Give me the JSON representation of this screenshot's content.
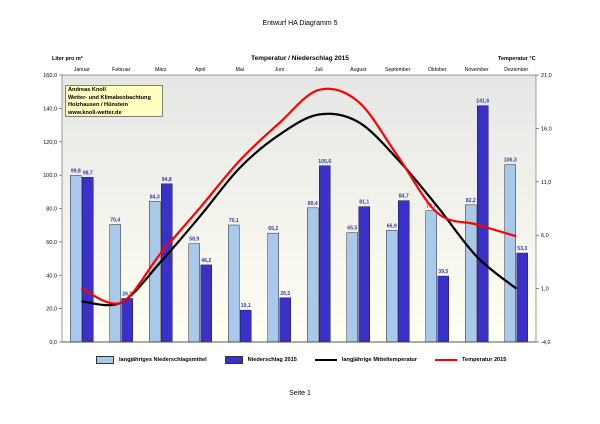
{
  "doc": {
    "title": "Entwurf HA Diagramm 5",
    "footer": "Seite 1"
  },
  "chart_header": {
    "left_unit": "Liter pro m²",
    "title": "Temperatur / Niederschlag 2015",
    "right_unit": "Temperatur °C"
  },
  "infobox": {
    "line1": "Andreas Knoll",
    "line2": "Wetter- und Klimabeobachtung",
    "line3": "Holzhausen / Hünstein",
    "line4": "www.knoll-wetter.de"
  },
  "colors": {
    "plot_bg_top": "#e6e6e6",
    "plot_bg_bottom": "#fffff2",
    "bar_longterm": "#a8c8ec",
    "bar_2015": "#3a32c8",
    "line_longterm": "#000000",
    "line_2015": "#ff0000",
    "label_text": "#3a3aa0"
  },
  "chart_data": {
    "type": "bar+line",
    "categories": [
      "Januar",
      "Februar",
      "März",
      "April",
      "Mai",
      "Juni",
      "Juli",
      "August",
      "September",
      "Oktober",
      "November",
      "Dezember"
    ],
    "y_left_range": [
      0,
      160
    ],
    "y_left_ticks": [
      "0,0",
      "20,0",
      "40,0",
      "60,0",
      "80,0",
      "100,0",
      "120,0",
      "140,0",
      "160,0"
    ],
    "y_right_range": [
      -4,
      21
    ],
    "y_right_ticks": [
      "-4,0",
      "1,0",
      "6,0",
      "11,0",
      "16,0",
      "21,0"
    ],
    "bar_series": [
      {
        "name": "langjähriges Niederschlagsmittel",
        "values": [
          99.8,
          70.4,
          84.3,
          58.9,
          70.1,
          65.2,
          80.4,
          65.5,
          66.9,
          78.7,
          82.2,
          106.3
        ],
        "labels": [
          "99,8",
          "70,4",
          "84,3",
          "58,9",
          "70,1",
          "65,2",
          "80,4",
          "65,5",
          "66,9",
          "78,7",
          "82,2",
          "106,3"
        ]
      },
      {
        "name": "Niederschlag 2015",
        "values": [
          98.7,
          26.1,
          94.8,
          46.2,
          19.1,
          26.5,
          105.6,
          81.1,
          84.7,
          39.5,
          141.6,
          53.3
        ],
        "labels": [
          "98,7",
          "26,1",
          "94,8",
          "46,2",
          "19,1",
          "26,5",
          "105,6",
          "81,1",
          "84,7",
          "39,5",
          "141,6",
          "53,3"
        ]
      }
    ],
    "line_series": [
      {
        "name": "langjährige Mitteltemperatur",
        "values": [
          -0.2,
          -0.3,
          3.5,
          7.8,
          12.3,
          15.4,
          17.3,
          16.6,
          13.1,
          8.7,
          4.0,
          1.0
        ]
      },
      {
        "name": "Temperatur 2015",
        "values": [
          1.0,
          -0.3,
          4.3,
          8.6,
          13.0,
          16.5,
          19.6,
          18.5,
          13.4,
          8.1,
          7.0,
          5.9
        ]
      }
    ],
    "legend_position": "bottom",
    "grid": false
  }
}
